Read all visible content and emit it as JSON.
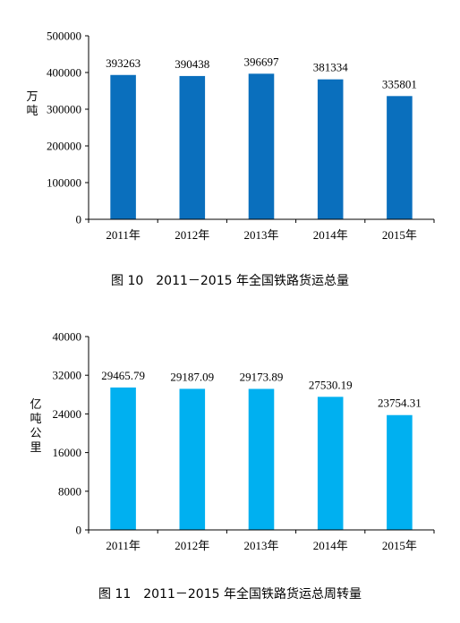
{
  "chart_data": [
    {
      "type": "bar",
      "title": "图 10　2011－2015 年全国铁路货运总量",
      "ylabel": "万吨",
      "categories": [
        "2011年",
        "2012年",
        "2013年",
        "2014年",
        "2015年"
      ],
      "values": [
        393263,
        390438,
        396697,
        381334,
        335801
      ],
      "value_labels": [
        "393263",
        "390438",
        "396697",
        "381334",
        "335801"
      ],
      "ylim": [
        0,
        500000
      ],
      "yticks": [
        "0",
        "100000",
        "200000",
        "300000",
        "400000",
        "500000"
      ],
      "bar_color": "#0a6fbd",
      "grid": false
    },
    {
      "type": "bar",
      "title": "图 11　2011－2015 年全国铁路货运总周转量",
      "ylabel": "亿吨公里",
      "categories": [
        "2011年",
        "2012年",
        "2013年",
        "2014年",
        "2015年"
      ],
      "values": [
        29465.79,
        29187.09,
        29173.89,
        27530.19,
        23754.31
      ],
      "value_labels": [
        "29465.79",
        "29187.09",
        "29173.89",
        "27530.19",
        "23754.31"
      ],
      "ylim": [
        0,
        40000
      ],
      "yticks": [
        "0",
        "8000",
        "16000",
        "24000",
        "32000",
        "40000"
      ],
      "bar_color": "#00b0f0",
      "grid": false
    }
  ]
}
